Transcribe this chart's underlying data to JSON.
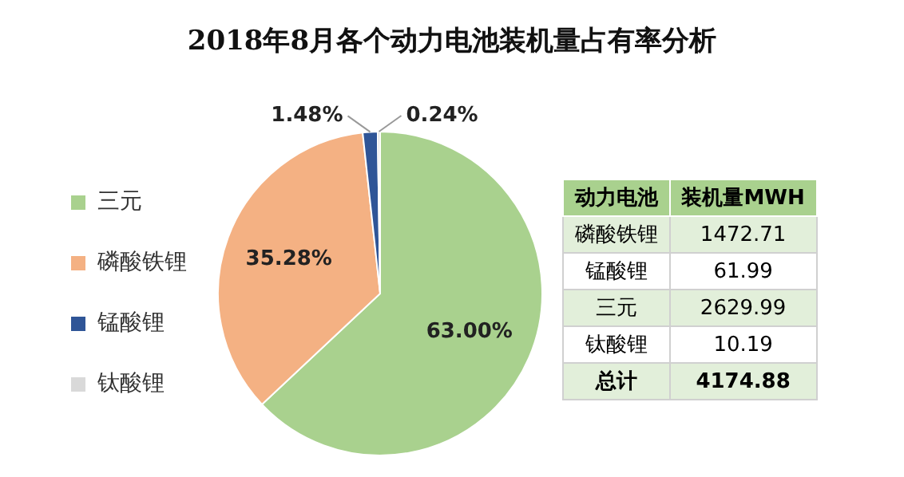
{
  "chart_data": [
    {
      "type": "pie",
      "title": "2018年8月各个动力电池装机量占有率分析",
      "categories": [
        "三元",
        "磷酸铁锂",
        "锰酸锂",
        "钛酸锂"
      ],
      "values": [
        63.0,
        35.28,
        1.48,
        0.24
      ],
      "value_labels": [
        "63.00%",
        "35.28%",
        "1.48%",
        "0.24%"
      ],
      "colors": [
        "#a9d18e",
        "#f4b183",
        "#2f5597",
        "#d9d9d9"
      ],
      "legend": "left"
    },
    {
      "type": "other",
      "xlabel": "动力电池",
      "ylabel": "装机量MWH",
      "categories": [
        "磷酸铁锂",
        "锰酸锂",
        "三元",
        "钛酸锂"
      ],
      "values": [
        1472.71,
        61.99,
        2629.99,
        10.19
      ],
      "data_labels": true,
      "annotations": [
        "总计",
        "4174.88"
      ]
    }
  ]
}
